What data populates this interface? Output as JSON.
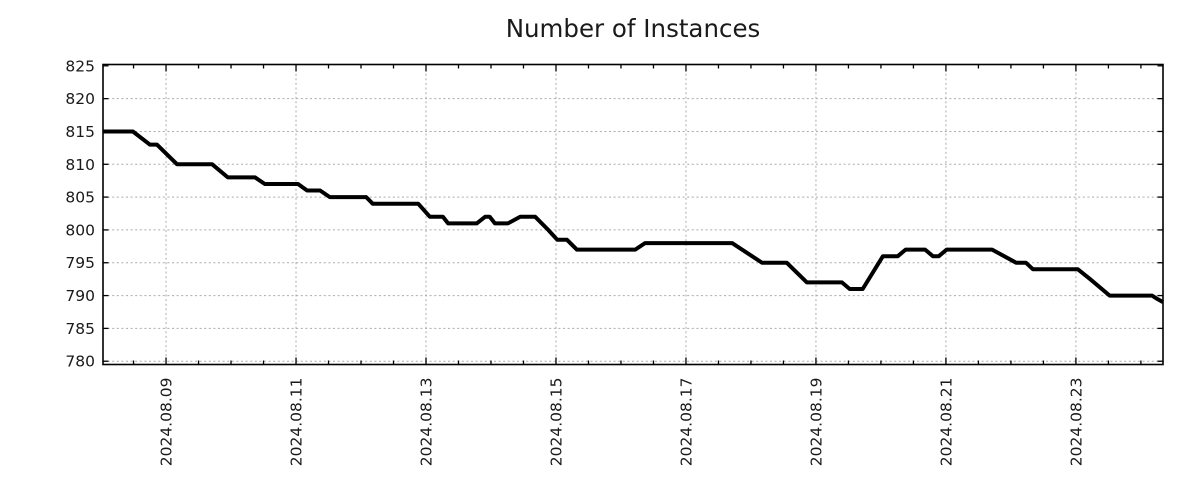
{
  "title": "Number of Instances",
  "chart_data": {
    "type": "line",
    "title": "Number of Instances",
    "xlabel": "",
    "ylabel": "",
    "x_unit": "day of 2024-08",
    "x_domain": [
      8.03,
      24.34
    ],
    "y_domain": [
      779.5,
      825.2
    ],
    "x_major_tick_days": [
      9,
      11,
      13,
      15,
      17,
      19,
      21,
      23
    ],
    "x_tick_labels": [
      "2024.08.09",
      "2024.08.11",
      "2024.08.13",
      "2024.08.15",
      "2024.08.17",
      "2024.08.19",
      "2024.08.21",
      "2024.08.23"
    ],
    "x_minor_tick_step": 0.5,
    "y_ticks": [
      780,
      785,
      790,
      795,
      800,
      805,
      810,
      815,
      820,
      825
    ],
    "grid": true,
    "legend": "none",
    "colors": {
      "line": "#000000",
      "grid": "#ababab",
      "frame": "#000000",
      "text": "#1a1a1a",
      "background": "#ffffff"
    },
    "series": [
      {
        "name": "instances",
        "points": [
          [
            8.03,
            815
          ],
          [
            8.49,
            815
          ],
          [
            8.75,
            813
          ],
          [
            8.86,
            813
          ],
          [
            9.17,
            810
          ],
          [
            9.71,
            810
          ],
          [
            9.95,
            808
          ],
          [
            10.37,
            808
          ],
          [
            10.52,
            807
          ],
          [
            11.03,
            807
          ],
          [
            11.17,
            806
          ],
          [
            11.37,
            806
          ],
          [
            11.52,
            805
          ],
          [
            12.08,
            805
          ],
          [
            12.18,
            804
          ],
          [
            12.88,
            804
          ],
          [
            13.06,
            802
          ],
          [
            13.26,
            802
          ],
          [
            13.34,
            801
          ],
          [
            13.78,
            801
          ],
          [
            13.91,
            802
          ],
          [
            13.98,
            802
          ],
          [
            14.06,
            801
          ],
          [
            14.26,
            801
          ],
          [
            14.45,
            802
          ],
          [
            14.68,
            802
          ],
          [
            14.88,
            800
          ],
          [
            15.02,
            798.5
          ],
          [
            15.17,
            798.5
          ],
          [
            15.32,
            797
          ],
          [
            16.22,
            797
          ],
          [
            16.37,
            798
          ],
          [
            17.71,
            798
          ],
          [
            18.17,
            795
          ],
          [
            18.55,
            795
          ],
          [
            18.86,
            792
          ],
          [
            19.4,
            792
          ],
          [
            19.52,
            791
          ],
          [
            19.72,
            791
          ],
          [
            20.03,
            796
          ],
          [
            20.26,
            796
          ],
          [
            20.38,
            797
          ],
          [
            20.68,
            797
          ],
          [
            20.8,
            796
          ],
          [
            20.89,
            796
          ],
          [
            21.01,
            797
          ],
          [
            21.71,
            797
          ],
          [
            22.08,
            795
          ],
          [
            22.23,
            795
          ],
          [
            22.34,
            794
          ],
          [
            23.03,
            794
          ],
          [
            23.22,
            792.5
          ],
          [
            23.52,
            790
          ],
          [
            24.17,
            790
          ],
          [
            24.25,
            789.5
          ],
          [
            24.34,
            789
          ]
        ]
      }
    ]
  }
}
